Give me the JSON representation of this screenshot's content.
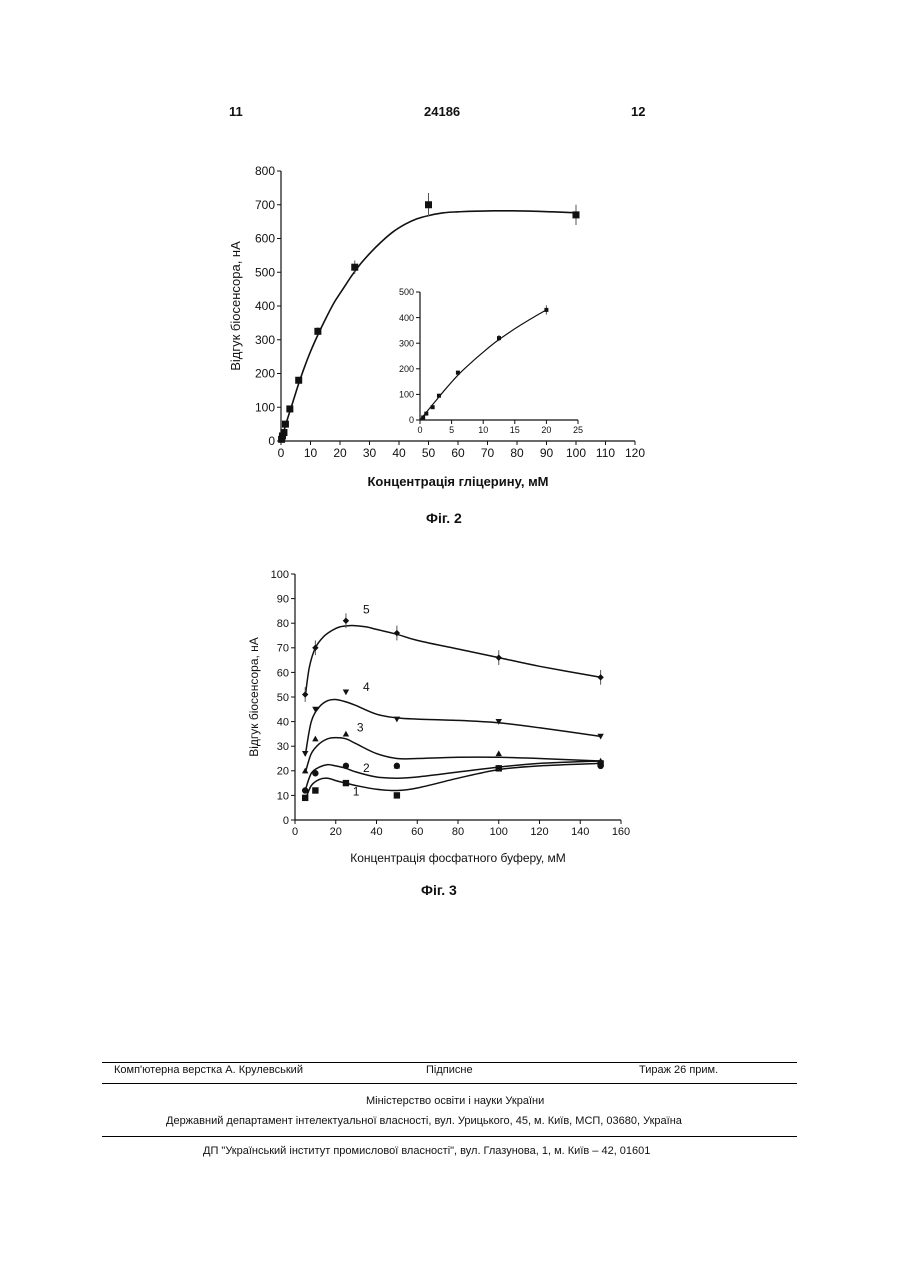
{
  "header": {
    "left_page": "11",
    "patent_number": "24186",
    "right_page": "12"
  },
  "figures": [
    {
      "caption": "Фіг. 2"
    },
    {
      "caption": "Фіг. 3"
    }
  ],
  "chart_data": [
    {
      "type": "scatter",
      "xlabel": "Концентрація гліцерину, мМ",
      "ylabel": "Відгук біосенсора, нА",
      "xlim": [
        0,
        120
      ],
      "ylim": [
        0,
        800
      ],
      "xticks": [
        "0",
        "10",
        "20",
        "30",
        "40",
        "50",
        "60",
        "70",
        "80",
        "90",
        "100",
        "110",
        "120"
      ],
      "yticks": [
        "0",
        "100",
        "200",
        "300",
        "400",
        "500",
        "600",
        "700",
        "800"
      ],
      "series": [
        {
          "x": [
            0.2,
            0.5,
            1,
            1.5,
            3,
            6,
            12.5,
            25,
            50,
            100
          ],
          "y": [
            5,
            15,
            25,
            50,
            95,
            180,
            325,
            515,
            700,
            670
          ],
          "err": [
            3,
            3,
            3,
            5,
            8,
            10,
            12,
            20,
            35,
            30
          ],
          "fit_x": [
            0,
            1,
            2,
            4,
            6,
            8,
            10,
            12,
            15,
            18,
            21,
            24,
            27,
            30,
            34,
            38,
            42,
            46,
            50,
            55,
            60,
            66,
            72,
            78,
            85,
            92,
            100
          ],
          "fit_y": [
            0,
            30,
            60,
            115,
            170,
            220,
            265,
            305,
            360,
            410,
            450,
            490,
            525,
            555,
            590,
            620,
            642,
            658,
            668,
            676,
            679,
            681,
            682,
            682,
            681,
            679,
            676
          ]
        }
      ],
      "inset": {
        "xlim": [
          0,
          25
        ],
        "ylim": [
          0,
          500
        ],
        "xticks": [
          "0",
          "5",
          "10",
          "15",
          "20",
          "25"
        ],
        "yticks": [
          "0",
          "100",
          "200",
          "300",
          "400",
          "500"
        ],
        "x": [
          0.5,
          1,
          2,
          3,
          6,
          12.5,
          20
        ],
        "y": [
          10,
          25,
          50,
          95,
          185,
          320,
          430
        ],
        "err": [
          3,
          3,
          4,
          5,
          8,
          12,
          18
        ],
        "fit_x": [
          0,
          2,
          4,
          6,
          8,
          10,
          12,
          14,
          16,
          18,
          20
        ],
        "fit_y": [
          0,
          60,
          120,
          175,
          222,
          265,
          305,
          340,
          372,
          402,
          430
        ]
      }
    },
    {
      "type": "line",
      "xlabel": "Концентрація фосфатного буферу, мМ",
      "ylabel": "Відгук біосенсора, нА",
      "xlim": [
        0,
        160
      ],
      "ylim": [
        0,
        100
      ],
      "xticks": [
        "0",
        "20",
        "40",
        "60",
        "80",
        "100",
        "120",
        "140",
        "160"
      ],
      "yticks": [
        "0",
        "10",
        "20",
        "30",
        "40",
        "50",
        "60",
        "70",
        "80",
        "90",
        "100"
      ],
      "series": [
        {
          "name": "1",
          "x": [
            5,
            10,
            25,
            50,
            100,
            150
          ],
          "y": [
            9,
            12,
            15,
            10,
            21,
            23
          ],
          "marker": "square",
          "fit_x": [
            5,
            8,
            12,
            16,
            20,
            25,
            30,
            40,
            50,
            60,
            80,
            100,
            120,
            150
          ],
          "fit_y": [
            8,
            14,
            16.5,
            17,
            16,
            15,
            14,
            12.5,
            12,
            13,
            17,
            20.5,
            22,
            23
          ]
        },
        {
          "name": "2",
          "x": [
            5,
            10,
            25,
            50,
            100,
            150
          ],
          "y": [
            12,
            19,
            22,
            22,
            21,
            22
          ],
          "marker": "circle",
          "fit_x": [
            5,
            8,
            12,
            16,
            20,
            25,
            30,
            40,
            50,
            60,
            80,
            100,
            120,
            150
          ],
          "fit_y": [
            12,
            19,
            21.5,
            22.5,
            22,
            21,
            19.5,
            17.5,
            17,
            17.5,
            19.5,
            21.5,
            23,
            24
          ]
        },
        {
          "name": "3",
          "x": [
            5,
            10,
            25,
            50,
            100,
            150
          ],
          "y": [
            20,
            33,
            35,
            22,
            27,
            24
          ],
          "marker": "triangle-up",
          "fit_x": [
            5,
            8,
            12,
            16,
            20,
            25,
            30,
            40,
            50,
            60,
            80,
            100,
            120,
            150
          ],
          "fit_y": [
            19,
            27,
            31,
            33,
            33.5,
            33,
            31,
            27,
            25,
            25,
            25.5,
            25.5,
            25,
            24
          ]
        },
        {
          "name": "4",
          "x": [
            5,
            10,
            25,
            50,
            100,
            150
          ],
          "y": [
            27,
            45,
            52,
            41,
            40,
            34
          ],
          "marker": "triangle-down",
          "fit_x": [
            5,
            8,
            12,
            16,
            20,
            25,
            30,
            40,
            50,
            60,
            80,
            100,
            120,
            150
          ],
          "fit_y": [
            26,
            40,
            46,
            48.5,
            49,
            48,
            46.5,
            43,
            41.5,
            41,
            40.5,
            39.5,
            37.5,
            34
          ]
        },
        {
          "name": "5",
          "x": [
            5,
            10,
            25,
            50,
            100,
            150
          ],
          "y": [
            51,
            70,
            81,
            76,
            66,
            58
          ],
          "marker": "diamond",
          "fit_x": [
            5,
            7,
            10,
            14,
            18,
            22,
            26,
            30,
            35,
            40,
            50,
            60,
            80,
            100,
            120,
            150
          ],
          "fit_y": [
            50,
            62,
            70,
            74.5,
            77,
            78.5,
            79,
            79,
            78.5,
            77.5,
            75.5,
            73,
            69.5,
            66,
            62.5,
            58
          ],
          "err": 3
        }
      ]
    }
  ],
  "footer": {
    "typesetting": "Комп'ютерна верстка А. Крулевський",
    "signed": "Підписне",
    "circulation": "Тираж 26 прим.",
    "ministry": "Міністерство освіти і науки України",
    "department": "Державний департамент інтелектуальної власності, вул. Урицького, 45, м. Київ, МСП, 03680, Україна",
    "institute": "ДП \"Український інститут промислової власності\", вул. Глазунова, 1, м. Київ – 42, 01601"
  }
}
